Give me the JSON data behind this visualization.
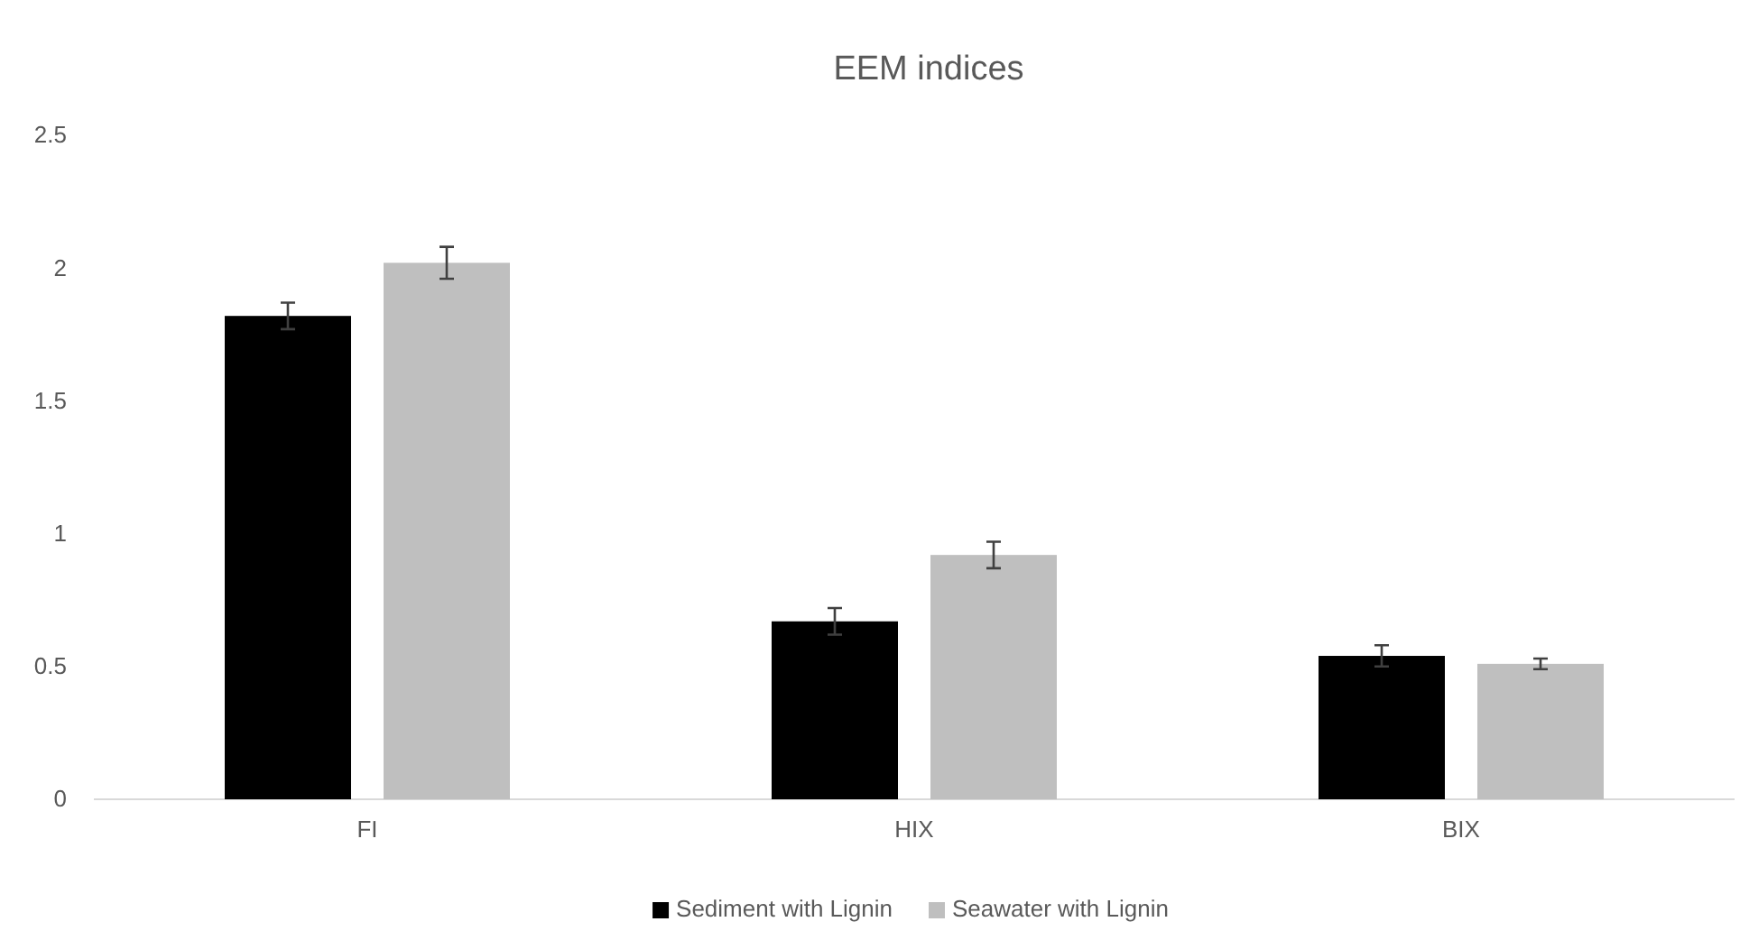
{
  "chart_data": {
    "type": "bar",
    "title": "EEM indices",
    "categories": [
      "FI",
      "HIX",
      "BIX"
    ],
    "series": [
      {
        "name": "Sediment with Lignin",
        "color": "#000000",
        "values": [
          1.82,
          0.67,
          0.54
        ],
        "errors": [
          0.05,
          0.05,
          0.04
        ]
      },
      {
        "name": "Seawater with Lignin",
        "color": "#bfbfbf",
        "values": [
          2.02,
          0.92,
          0.51
        ],
        "errors": [
          0.06,
          0.05,
          0.02
        ]
      }
    ],
    "ylim": [
      0,
      2.5
    ],
    "yticks": [
      0,
      0.5,
      1,
      1.5,
      2,
      2.5
    ],
    "grid": false,
    "legend": "bottom"
  }
}
